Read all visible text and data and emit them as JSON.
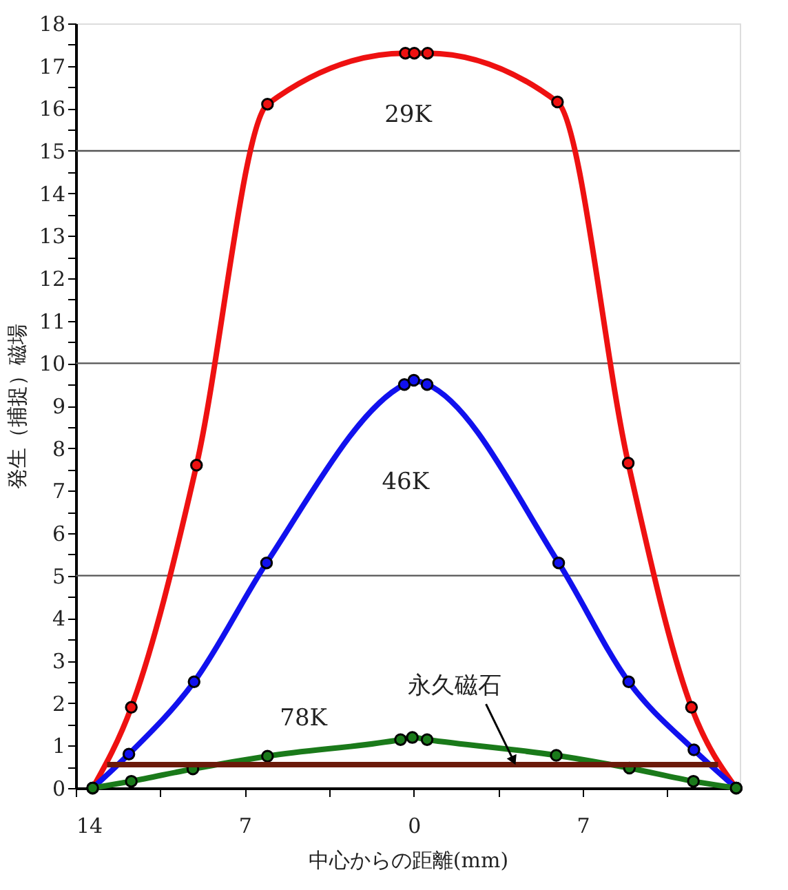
{
  "chart_data": {
    "type": "line",
    "xlabel": "中心からの距離(mm)",
    "ylabel": "発生（捕捉）磁場",
    "xlim": [
      -14,
      13.5
    ],
    "ylim": [
      0,
      18
    ],
    "xticks": [
      {
        "value": -14,
        "label": "14"
      },
      {
        "value": -10.5,
        "label": null
      },
      {
        "value": -7,
        "label": "7"
      },
      {
        "value": -3.5,
        "label": null
      },
      0,
      {
        "value": 3.5,
        "label": null
      },
      {
        "value": 7,
        "label": "7"
      },
      {
        "value": 10.5,
        "label": null
      }
    ],
    "yticks": [
      0,
      {
        "value": 0.5,
        "label": null
      },
      1,
      {
        "value": 1.5,
        "label": null
      },
      2,
      {
        "value": 2.5,
        "label": null
      },
      3,
      {
        "value": 3.5,
        "label": null
      },
      4,
      {
        "value": 4.5,
        "label": null
      },
      5,
      {
        "value": 5.5,
        "label": null
      },
      6,
      {
        "value": 6.5,
        "label": null
      },
      7,
      {
        "value": 7.5,
        "label": null
      },
      8,
      {
        "value": 8.5,
        "label": null
      },
      9,
      {
        "value": 9.5,
        "label": null
      },
      10,
      {
        "value": 10.5,
        "label": null
      },
      11,
      {
        "value": 11.5,
        "label": null
      },
      12,
      {
        "value": 12.5,
        "label": null
      },
      13,
      {
        "value": 13.5,
        "label": null
      },
      14,
      {
        "value": 14.5,
        "label": null
      },
      15,
      {
        "value": 15.5,
        "label": null
      },
      16,
      {
        "value": 16.5,
        "label": null
      },
      17,
      {
        "value": 17.5,
        "label": null
      },
      18
    ],
    "grid": false,
    "marker": "circle",
    "line_style": "solid",
    "ref_lines": [
      {
        "axis": "y",
        "value": 5,
        "color": "#555555"
      },
      {
        "axis": "y",
        "value": 10,
        "color": "#555555"
      },
      {
        "axis": "y",
        "value": 15,
        "color": "#555555"
      }
    ],
    "series": [
      {
        "name": "29K",
        "color": "#ee1111",
        "x": [
          -13.3,
          -11.7,
          -9.0,
          -6.06,
          -0.35,
          0.02,
          0.57,
          5.95,
          8.88,
          11.5,
          13.35
        ],
        "values": [
          0,
          1.9,
          7.6,
          16.1,
          17.3,
          17.3,
          17.3,
          16.15,
          7.65,
          1.9,
          0
        ]
      },
      {
        "name": "46K",
        "color": "#1111ee",
        "x": [
          -13.3,
          -11.8,
          -9.1,
          -6.1,
          -0.39,
          0,
          0.55,
          6.0,
          8.9,
          11.6,
          13.35
        ],
        "values": [
          0,
          0.8,
          2.5,
          5.3,
          9.5,
          9.6,
          9.5,
          5.3,
          2.5,
          0.9,
          0
        ]
      },
      {
        "name": "78K",
        "color": "#1a7a1a",
        "x": [
          -13.3,
          -11.7,
          -9.15,
          -6.06,
          -0.55,
          -0.06,
          0.55,
          5.9,
          8.93,
          11.58,
          13.35
        ],
        "values": [
          0,
          0.16,
          0.45,
          0.75,
          1.14,
          1.19,
          1.14,
          0.77,
          0.47,
          0.16,
          0
        ]
      },
      {
        "name": "永久磁石",
        "color": "#6b1a0a",
        "marker": "none",
        "x": [
          -12.7,
          12.6
        ],
        "values": [
          0.55,
          0.55
        ]
      }
    ]
  }
}
